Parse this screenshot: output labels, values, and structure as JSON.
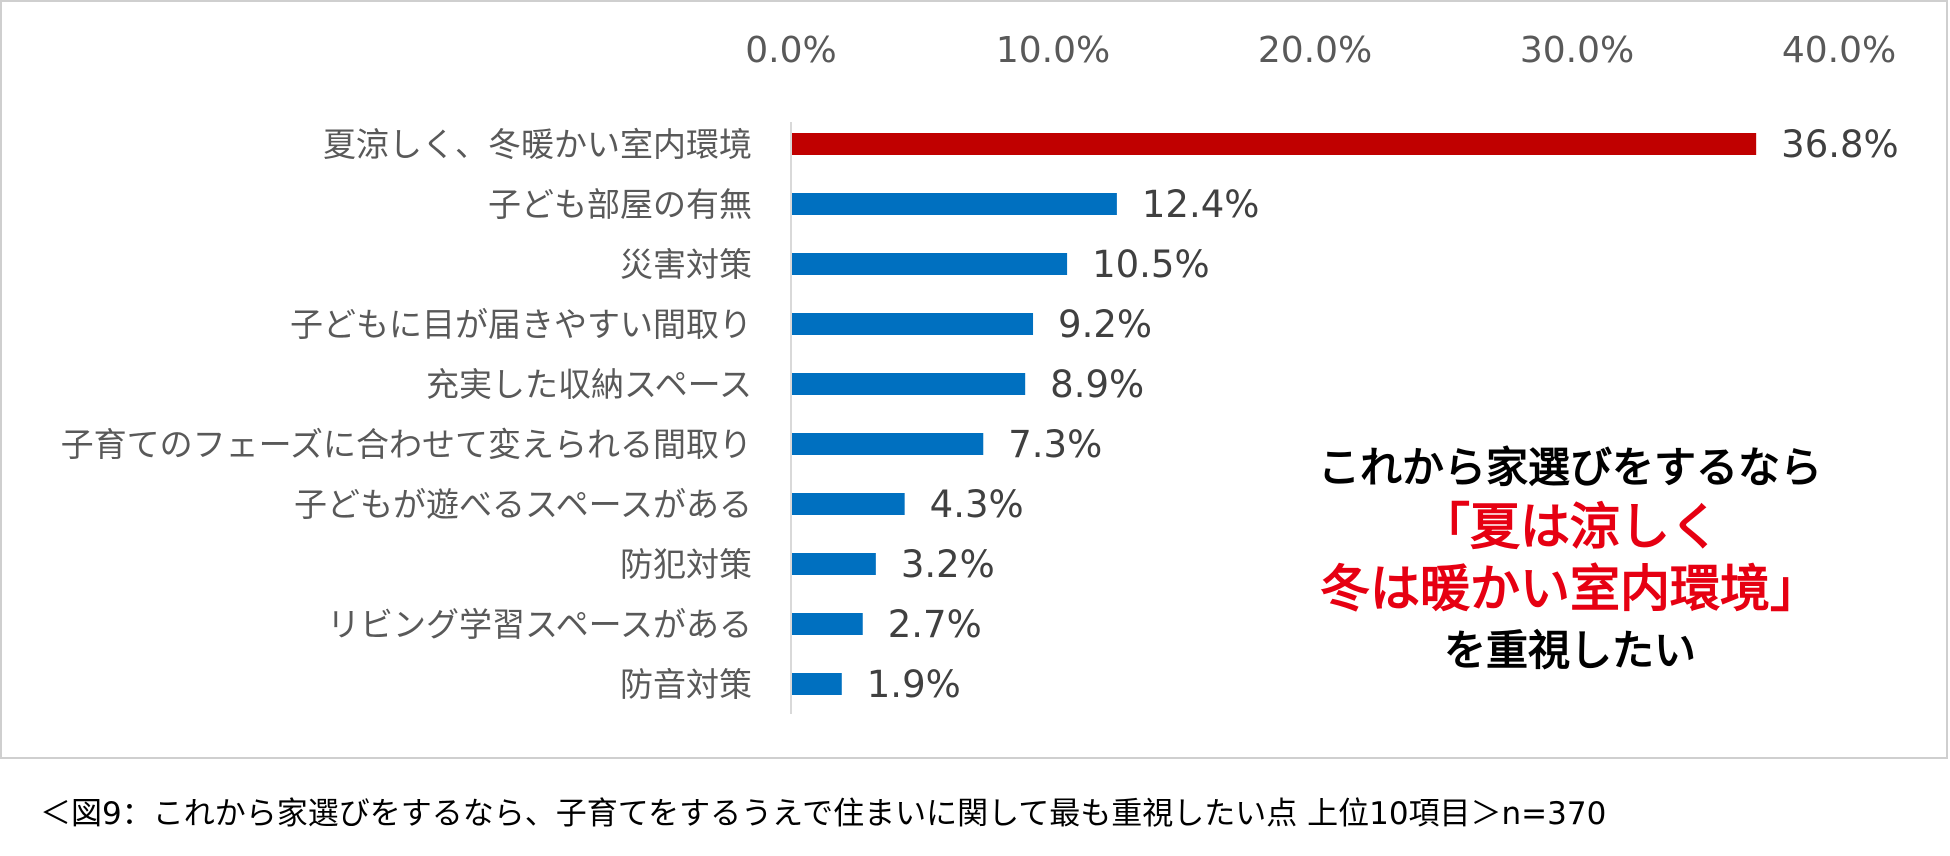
{
  "chart_data": {
    "type": "bar",
    "orientation": "horizontal",
    "categories": [
      "夏涼しく、冬暖かい室内環境",
      "子ども部屋の有無",
      "災害対策",
      "子どもに目が届きやすい間取り",
      "充実した収納スペース",
      "子育てのフェーズに合わせて変えられる間取り",
      "子どもが遊べるスペースがある",
      "防犯対策",
      "リビング学習スペースがある",
      "防音対策"
    ],
    "values": [
      36.8,
      12.4,
      10.5,
      9.2,
      8.9,
      7.3,
      4.3,
      3.2,
      2.7,
      1.9
    ],
    "value_labels": [
      "36.8%",
      "12.4%",
      "10.5%",
      "9.2%",
      "8.9%",
      "7.3%",
      "4.3%",
      "3.2%",
      "2.7%",
      "1.9%"
    ],
    "highlight_index": 0,
    "xlim": [
      0,
      40
    ],
    "xticks": [
      0,
      10,
      20,
      30,
      40
    ],
    "xtick_labels": [
      "0.0%",
      "10.0%",
      "20.0%",
      "30.0%",
      "40.0%"
    ],
    "xaxis_position": "top",
    "grid": false,
    "colors": {
      "bar": "#0070c0",
      "highlight": "#c00000",
      "axis": "#d9d9d9"
    }
  },
  "callout": {
    "line1": "これから家選びをするなら",
    "line2": "「夏は涼しく",
    "line3": "冬は暖かい室内環境」",
    "line4": "を重視したい"
  },
  "caption": "＜図9：これから家選びをするなら、子育てをするうえで住まいに関して最も重視したい点 上位10項目＞n=370"
}
